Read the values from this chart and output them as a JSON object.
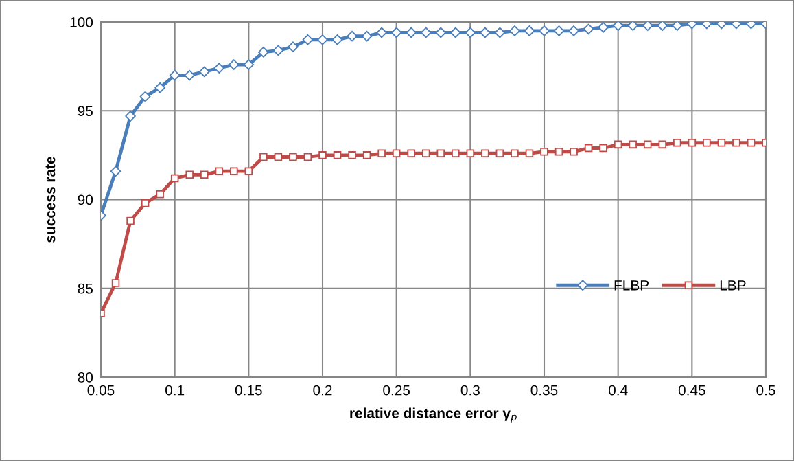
{
  "chart_data": {
    "type": "line",
    "xlabel": "relative distance error γ$_{p}$",
    "ylabel": "success rate",
    "x": [
      0.05,
      0.06,
      0.07,
      0.08,
      0.09,
      0.1,
      0.11,
      0.12,
      0.13,
      0.14,
      0.15,
      0.16,
      0.17,
      0.18,
      0.19,
      0.2,
      0.21,
      0.22,
      0.23,
      0.24,
      0.25,
      0.26,
      0.27,
      0.28,
      0.29,
      0.3,
      0.31,
      0.32,
      0.33,
      0.34,
      0.35,
      0.36,
      0.37,
      0.38,
      0.39,
      0.4,
      0.41,
      0.42,
      0.43,
      0.44,
      0.45,
      0.46,
      0.47,
      0.48,
      0.49,
      0.5
    ],
    "series": [
      {
        "name": "FLBP",
        "color": "#4a7ebb",
        "marker": "diamond",
        "values": [
          89.1,
          91.6,
          94.7,
          95.8,
          96.3,
          97.0,
          97.0,
          97.2,
          97.4,
          97.6,
          97.6,
          98.3,
          98.4,
          98.6,
          99.0,
          99.0,
          99.0,
          99.2,
          99.2,
          99.4,
          99.4,
          99.4,
          99.4,
          99.4,
          99.4,
          99.4,
          99.4,
          99.4,
          99.5,
          99.5,
          99.5,
          99.5,
          99.5,
          99.6,
          99.7,
          99.8,
          99.8,
          99.8,
          99.8,
          99.8,
          99.9,
          99.9,
          99.9,
          99.9,
          99.9,
          99.9
        ]
      },
      {
        "name": "LBP",
        "color": "#be4b48",
        "marker": "square",
        "values": [
          83.6,
          85.3,
          88.8,
          89.8,
          90.3,
          91.2,
          91.4,
          91.4,
          91.6,
          91.6,
          91.6,
          92.4,
          92.4,
          92.4,
          92.4,
          92.5,
          92.5,
          92.5,
          92.5,
          92.6,
          92.6,
          92.6,
          92.6,
          92.6,
          92.6,
          92.6,
          92.6,
          92.6,
          92.6,
          92.6,
          92.7,
          92.7,
          92.7,
          92.9,
          92.9,
          93.1,
          93.1,
          93.1,
          93.1,
          93.2,
          93.2,
          93.2,
          93.2,
          93.2,
          93.2,
          93.2
        ]
      }
    ],
    "xlim": [
      0.05,
      0.5
    ],
    "xticks": [
      0.05,
      {
        "value": 0.1,
        "label": "0.1"
      },
      0.15,
      {
        "value": 0.2,
        "label": "0.2"
      },
      0.25,
      {
        "value": 0.3,
        "label": "0.3"
      },
      0.35,
      {
        "value": 0.4,
        "label": "0.4"
      },
      0.45,
      {
        "value": 0.5,
        "label": "0.5"
      }
    ],
    "ylim": [
      80,
      100
    ],
    "yticks": [
      80,
      85,
      90,
      95,
      100
    ],
    "grid": true,
    "legend": "bottom right",
    "line_style": "solid"
  }
}
